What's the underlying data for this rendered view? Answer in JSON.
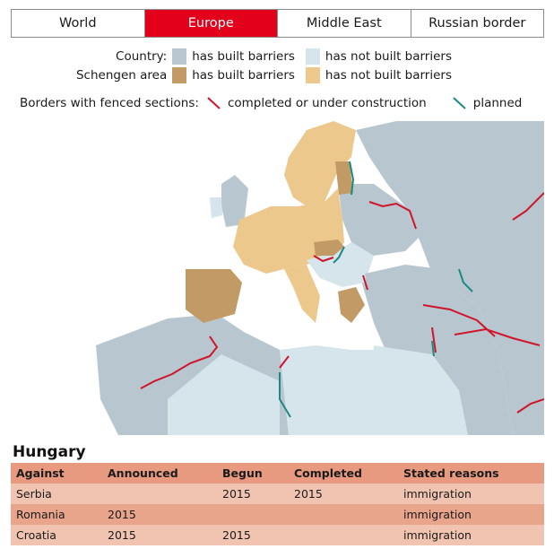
{
  "tabs": [
    {
      "label": "World",
      "active": false
    },
    {
      "label": "Europe",
      "active": true
    },
    {
      "label": "Middle East",
      "active": false
    },
    {
      "label": "Russian border",
      "active": false
    }
  ],
  "legend": {
    "country_label": "Country:",
    "schengen_label": "Schengen area",
    "has_built": "has built barriers",
    "has_not_built": "has not built barriers",
    "borders_label": "Borders with fenced sections:",
    "completed": "completed or under construction",
    "planned": "planned"
  },
  "colors": {
    "active_tab": "#e3001b",
    "country_built": "#b8c6cf",
    "country_not_built": "#d6e4ec",
    "schengen_built": "#c29a66",
    "schengen_not_built": "#ecc88d",
    "border_completed": "#d0142a",
    "border_planned": "#1c8a83"
  },
  "table": {
    "title": "Hungary",
    "headers": [
      "Against",
      "Announced",
      "Begun",
      "Completed",
      "Stated reasons"
    ],
    "rows": [
      [
        "Serbia",
        "",
        "2015",
        "2015",
        "immigration"
      ],
      [
        "Romania",
        "2015",
        "",
        "",
        "immigration"
      ],
      [
        "Croatia",
        "2015",
        "2015",
        "",
        "immigration"
      ]
    ]
  }
}
